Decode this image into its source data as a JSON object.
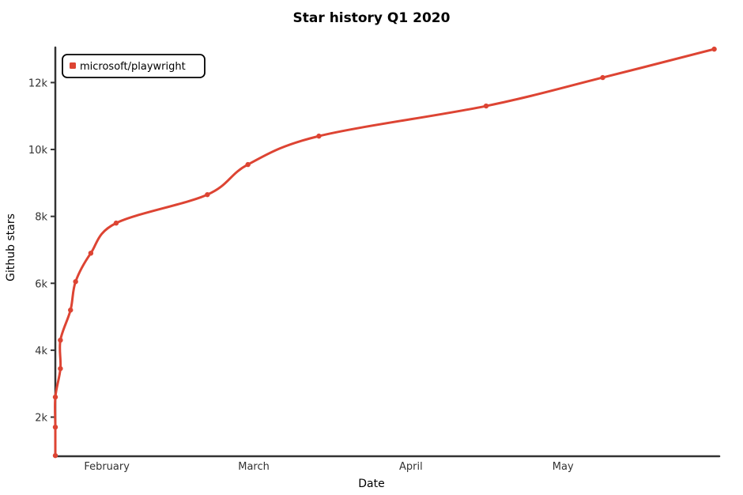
{
  "chart_data": {
    "type": "line",
    "title": "Star history Q1 2020",
    "xlabel": "Date",
    "ylabel": "Github stars",
    "x_tick_labels": [
      "February",
      "March",
      "April",
      "May"
    ],
    "x_tick_dates": [
      "2020-02-01",
      "2020-03-01",
      "2020-04-01",
      "2020-05-01"
    ],
    "xlim": [
      "2020-01-22",
      "2020-06-01"
    ],
    "y_ticks": [
      2000,
      4000,
      6000,
      8000,
      10000,
      12000
    ],
    "y_tick_labels": [
      "2k",
      "4k",
      "6k",
      "8k",
      "10k",
      "12k"
    ],
    "ylim": [
      830,
      13050
    ],
    "grid": false,
    "legend_position": "top-left",
    "series": [
      {
        "name": "microsoft/playwright",
        "color": "#dd4433",
        "points": [
          {
            "x": "2020-01-22",
            "y": 850
          },
          {
            "x": "2020-01-22",
            "y": 1700
          },
          {
            "x": "2020-01-22",
            "y": 2600
          },
          {
            "x": "2020-01-23",
            "y": 3450
          },
          {
            "x": "2020-01-23",
            "y": 4300
          },
          {
            "x": "2020-01-25",
            "y": 5200
          },
          {
            "x": "2020-01-26",
            "y": 6050
          },
          {
            "x": "2020-01-29",
            "y": 6900
          },
          {
            "x": "2020-02-03",
            "y": 7800
          },
          {
            "x": "2020-02-21",
            "y": 8650
          },
          {
            "x": "2020-02-29",
            "y": 9550
          },
          {
            "x": "2020-03-14",
            "y": 10400
          },
          {
            "x": "2020-04-16",
            "y": 11300
          },
          {
            "x": "2020-05-09",
            "y": 12150
          },
          {
            "x": "2020-05-31",
            "y": 13000
          }
        ]
      }
    ]
  }
}
